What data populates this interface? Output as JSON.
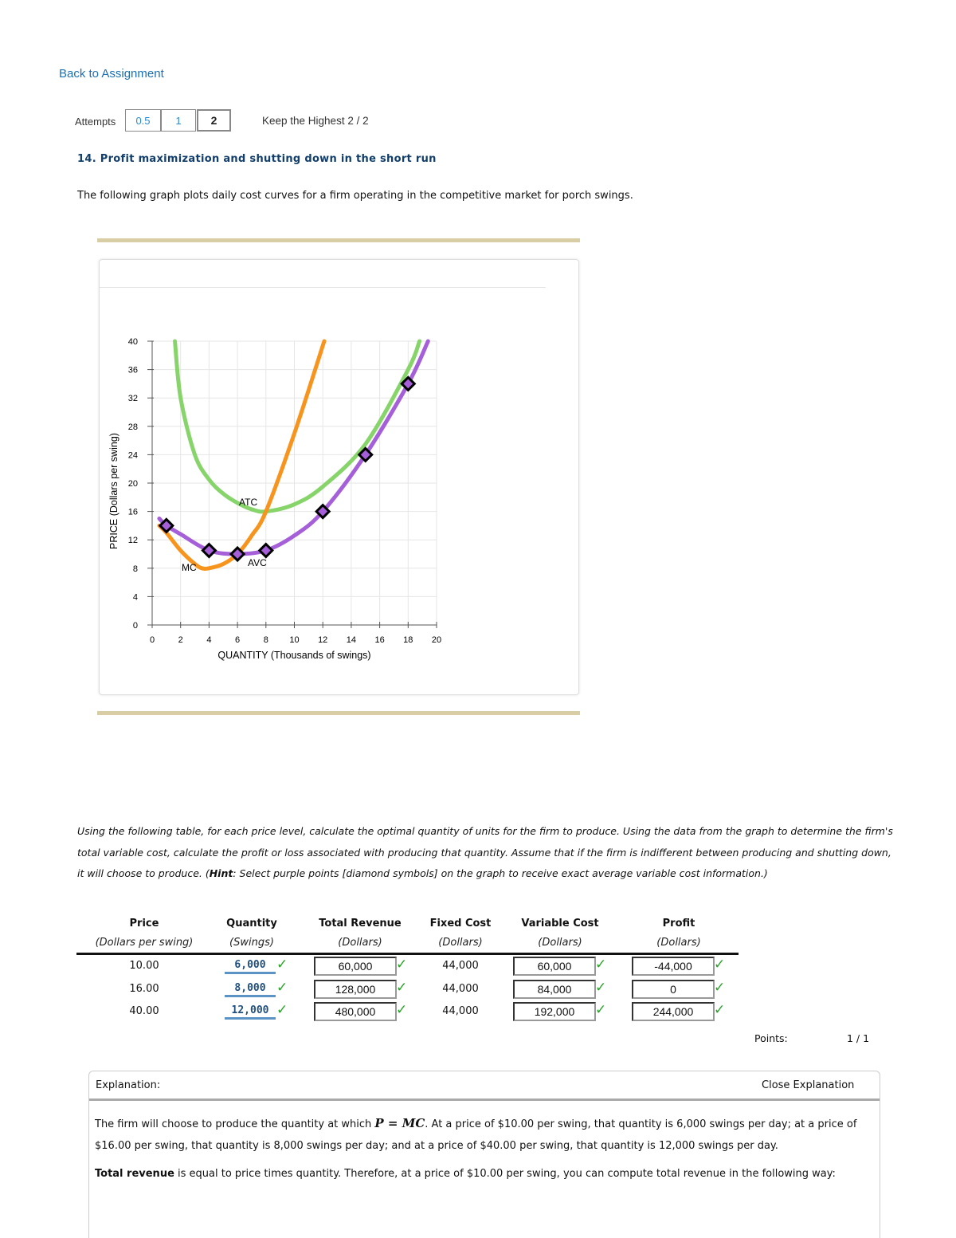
{
  "nav": {
    "back_label": "Back to Assignment"
  },
  "attempts": {
    "label": "Attempts",
    "values": [
      "0.5",
      "1",
      "2"
    ],
    "keep_label": "Keep the Highest",
    "score": "2 / 2"
  },
  "question": {
    "title": "14. Profit maximization and shutting down in the short run",
    "intro": "The following graph plots daily cost curves for a firm operating in the competitive market for porch swings.",
    "instructions_pre": "Using the following table, for each price level, calculate the optimal quantity of units for the firm to produce. Using the data from the graph to determine the firm's total variable cost, calculate the profit or loss associated with producing that quantity. Assume that if the firm is indifferent between producing and shutting down, it will choose to produce. (",
    "hint_label": "Hint",
    "instructions_post": ": Select purple points [diamond symbols] on the graph to receive exact average variable cost information.)"
  },
  "chart_data": {
    "type": "line",
    "xlabel": "QUANTITY (Thousands of swings)",
    "ylabel": "PRICE (Dollars per swing)",
    "xlim": [
      0,
      20
    ],
    "ylim": [
      0,
      40
    ],
    "xticks": [
      "0",
      "2",
      "4",
      "6",
      "8",
      "10",
      "12",
      "14",
      "16",
      "18",
      "20"
    ],
    "yticks": [
      "0",
      "4",
      "8",
      "12",
      "16",
      "20",
      "24",
      "28",
      "32",
      "36",
      "40"
    ],
    "grid": true,
    "series": [
      {
        "name": "ATC",
        "color": "#86d46a",
        "x": [
          1.6,
          2,
          3,
          4,
          5,
          6,
          7,
          8,
          10,
          12,
          15,
          18,
          18.8
        ],
        "y": [
          40,
          32,
          24,
          20.5,
          18.5,
          17.2,
          16.3,
          16,
          17,
          19.5,
          25.5,
          36,
          40
        ]
      },
      {
        "name": "MC",
        "color": "#f7941d",
        "x": [
          0.5,
          1,
          2,
          3,
          3.5,
          4,
          5,
          6,
          7,
          8,
          10,
          12.1
        ],
        "y": [
          14,
          13,
          10.5,
          8.6,
          8,
          8,
          8.6,
          10,
          12.6,
          16,
          27,
          40
        ]
      },
      {
        "name": "AVC",
        "color": "#a55fd8",
        "x": [
          0.5,
          1,
          2,
          4,
          6,
          8,
          10,
          12,
          15,
          18,
          19.4
        ],
        "y": [
          15,
          14,
          12.8,
          10.5,
          10,
          10.5,
          12.6,
          16,
          24,
          34,
          40
        ]
      }
    ],
    "avc_points": {
      "x": [
        1,
        4,
        6,
        8,
        12,
        15,
        18
      ],
      "y": [
        14,
        10.5,
        10,
        10.5,
        16,
        24,
        34
      ]
    }
  },
  "table": {
    "headers": [
      [
        "Price",
        "(Dollars per swing)"
      ],
      [
        "Quantity",
        "(Swings)"
      ],
      [
        "Total Revenue",
        "(Dollars)"
      ],
      [
        "Fixed Cost",
        "(Dollars)"
      ],
      [
        "Variable Cost",
        "(Dollars)"
      ],
      [
        "Profit",
        "(Dollars)"
      ]
    ],
    "rows": [
      {
        "price": "10.00",
        "quantity": "6,000",
        "revenue": "60,000",
        "fixed": "44,000",
        "variable": "60,000",
        "profit": "-44,000"
      },
      {
        "price": "16.00",
        "quantity": "8,000",
        "revenue": "128,000",
        "fixed": "44,000",
        "variable": "84,000",
        "profit": "0"
      },
      {
        "price": "40.00",
        "quantity": "12,000",
        "revenue": "480,000",
        "fixed": "44,000",
        "variable": "192,000",
        "profit": "244,000"
      }
    ],
    "check": "✓",
    "points_label": "Points:",
    "points_value": "1 / 1"
  },
  "explanation": {
    "label": "Explanation:",
    "close_label": "Close Explanation",
    "p1_pre": "The firm will choose to produce the quantity at which ",
    "p1_formula": "P = MC",
    "p1_post": ". At a price of $10.00 per swing, that quantity is 6,000 swings per day; at a price of $16.00 per swing, that quantity is 8,000 swings per day; and at a price of $40.00 per swing, that quantity is 12,000 swings per day.",
    "p2_bold": "Total revenue",
    "p2_post": " is equal to price times quantity. Therefore, at a price of $10.00 per swing, you can compute total revenue in the following way:"
  }
}
